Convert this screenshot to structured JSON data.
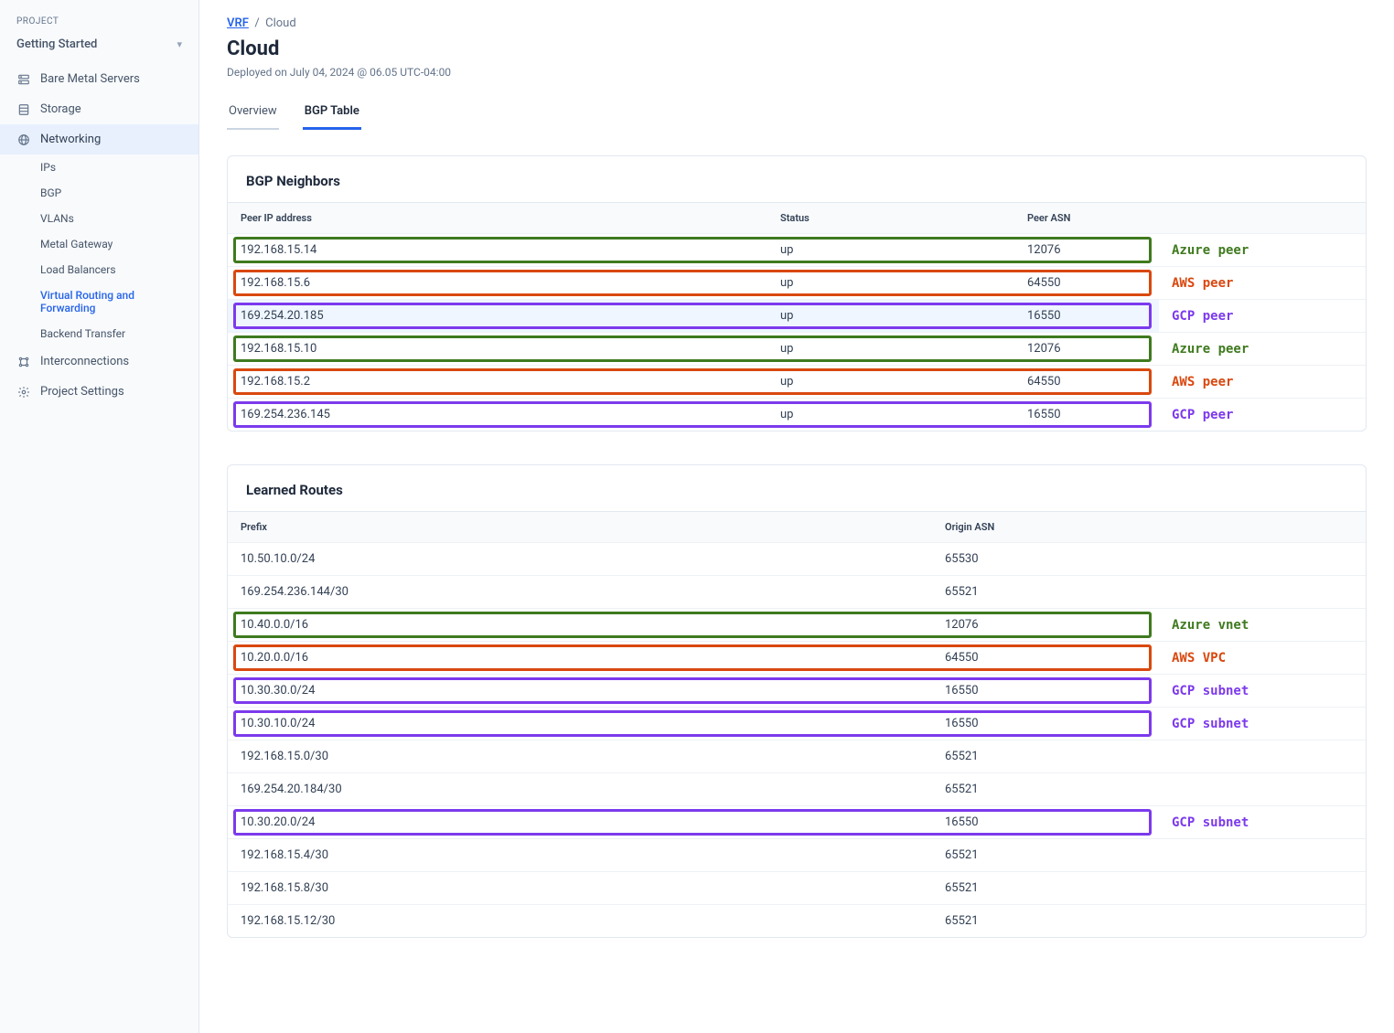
{
  "colors": {
    "azure": "#3f7a1f",
    "aws": "#d9480f",
    "gcp": "#7c3aed",
    "link": "#2563eb",
    "selected_row_bg": "#eff6ff"
  },
  "sidebar": {
    "section_label": "PROJECT",
    "project_name": "Getting Started",
    "items": [
      {
        "key": "bare-metal",
        "label": "Bare Metal Servers",
        "icon": "servers"
      },
      {
        "key": "storage",
        "label": "Storage",
        "icon": "storage"
      },
      {
        "key": "networking",
        "label": "Networking",
        "icon": "globe",
        "active_parent": true,
        "children": [
          {
            "key": "ips",
            "label": "IPs"
          },
          {
            "key": "bgp",
            "label": "BGP"
          },
          {
            "key": "vlans",
            "label": "VLANs"
          },
          {
            "key": "metal-gateway",
            "label": "Metal Gateway"
          },
          {
            "key": "load-balancers",
            "label": "Load Balancers"
          },
          {
            "key": "vrf",
            "label": "Virtual Routing and Forwarding",
            "active": true
          },
          {
            "key": "backend-transfer",
            "label": "Backend Transfer"
          }
        ]
      },
      {
        "key": "interconnections",
        "label": "Interconnections",
        "icon": "interconnect"
      },
      {
        "key": "project-settings",
        "label": "Project Settings",
        "icon": "gear"
      }
    ]
  },
  "breadcrumb": {
    "parent": "VRF",
    "sep": "/",
    "current": "Cloud"
  },
  "page": {
    "title": "Cloud",
    "deployed": "Deployed on July 04, 2024 @ 06.05 UTC-04:00"
  },
  "tabs": [
    {
      "key": "overview",
      "label": "Overview",
      "active": false
    },
    {
      "key": "bgp-table",
      "label": "BGP Table",
      "active": true
    }
  ],
  "bgp_neighbors": {
    "title": "BGP Neighbors",
    "columns": [
      "Peer IP address",
      "Status",
      "Peer ASN"
    ],
    "rows": [
      {
        "ip": "192.168.15.14",
        "status": "up",
        "asn": "12076",
        "hl": "azure",
        "annot": "Azure peer"
      },
      {
        "ip": "192.168.15.6",
        "status": "up",
        "asn": "64550",
        "hl": "aws",
        "annot": "AWS peer"
      },
      {
        "ip": "169.254.20.185",
        "status": "up",
        "asn": "16550",
        "hl": "gcp",
        "annot": "GCP peer",
        "selected": true
      },
      {
        "ip": "192.168.15.10",
        "status": "up",
        "asn": "12076",
        "hl": "azure",
        "annot": "Azure peer"
      },
      {
        "ip": "192.168.15.2",
        "status": "up",
        "asn": "64550",
        "hl": "aws",
        "annot": "AWS peer"
      },
      {
        "ip": "169.254.236.145",
        "status": "up",
        "asn": "16550",
        "hl": "gcp",
        "annot": "GCP peer"
      }
    ]
  },
  "learned_routes": {
    "title": "Learned Routes",
    "columns": [
      "Prefix",
      "Origin ASN"
    ],
    "rows": [
      {
        "prefix": "10.50.10.0/24",
        "asn": "65530"
      },
      {
        "prefix": "169.254.236.144/30",
        "asn": "65521"
      },
      {
        "prefix": "10.40.0.0/16",
        "asn": "12076",
        "hl": "azure",
        "annot": "Azure vnet"
      },
      {
        "prefix": "10.20.0.0/16",
        "asn": "64550",
        "hl": "aws",
        "annot": "AWS VPC"
      },
      {
        "prefix": "10.30.30.0/24",
        "asn": "16550",
        "hl": "gcp",
        "annot": "GCP subnet"
      },
      {
        "prefix": "10.30.10.0/24",
        "asn": "16550",
        "hl": "gcp",
        "annot": "GCP subnet"
      },
      {
        "prefix": "192.168.15.0/30",
        "asn": "65521"
      },
      {
        "prefix": "169.254.20.184/30",
        "asn": "65521"
      },
      {
        "prefix": "10.30.20.0/24",
        "asn": "16550",
        "hl": "gcp",
        "annot": "GCP subnet"
      },
      {
        "prefix": "192.168.15.4/30",
        "asn": "65521"
      },
      {
        "prefix": "192.168.15.8/30",
        "asn": "65521"
      },
      {
        "prefix": "192.168.15.12/30",
        "asn": "65521"
      }
    ]
  }
}
